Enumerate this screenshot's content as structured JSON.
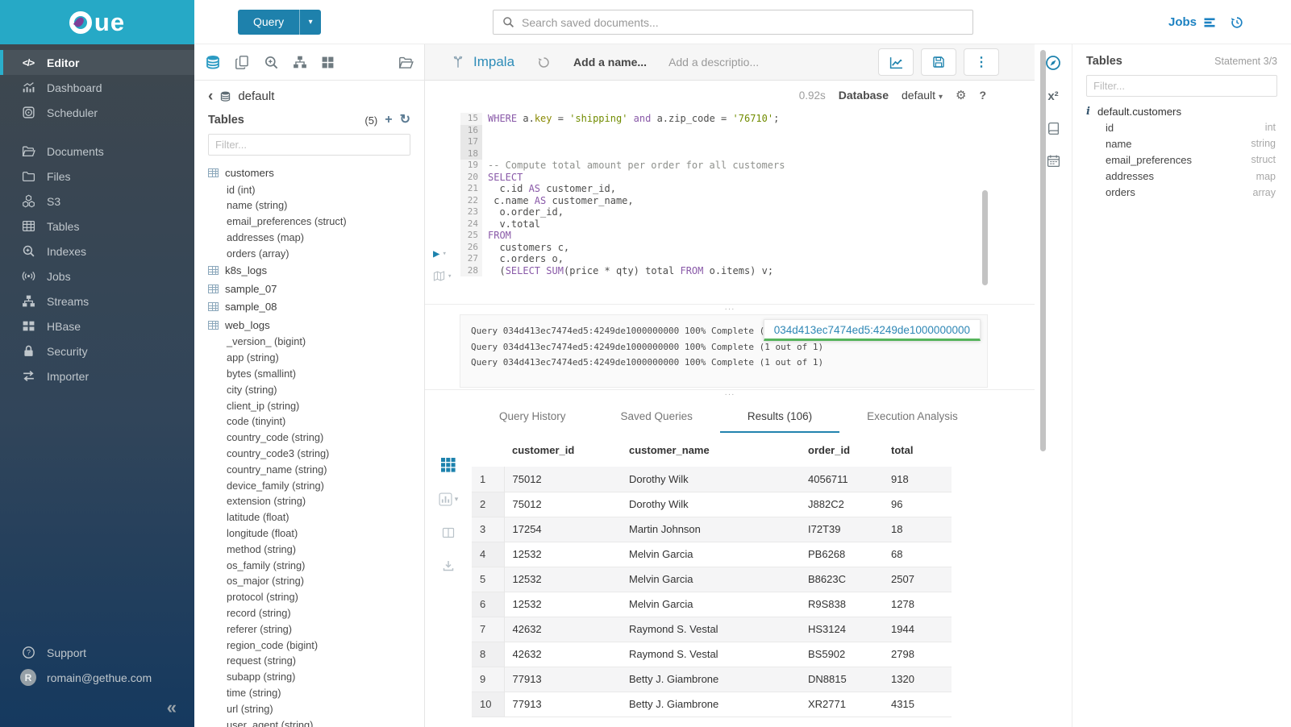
{
  "icons": {
    "editor_code": "</>",
    "caret_down": "▾",
    "play": "▶",
    "kebab": "⋮",
    "gear": "⚙",
    "help": "?",
    "back": "‹",
    "add": "+",
    "refresh": "↻",
    "collapse": "«",
    "superscript": "x²",
    "info": "i",
    "handle": "···",
    "avatar_initial": "R"
  },
  "colors": {
    "brand_cyan": "#26a9c6",
    "primary_blue": "#1d82ad",
    "keyword": "#8959a8",
    "string": "#718c00",
    "comment": "#8e908c",
    "tooltip_underline": "#56b45c"
  },
  "brand": {
    "logo_suffix": "ue"
  },
  "topbar": {
    "query_button": "Query",
    "search_placeholder": "Search saved documents...",
    "jobs_label": "Jobs"
  },
  "sidebar": {
    "items": [
      {
        "label": "Editor",
        "active": true
      },
      {
        "label": "Dashboard"
      },
      {
        "label": "Scheduler"
      },
      {
        "label": "Documents"
      },
      {
        "label": "Files"
      },
      {
        "label": "S3"
      },
      {
        "label": "Tables"
      },
      {
        "label": "Indexes"
      },
      {
        "label": "Jobs"
      },
      {
        "label": "Streams"
      },
      {
        "label": "HBase"
      },
      {
        "label": "Security"
      },
      {
        "label": "Importer"
      }
    ],
    "support_label": "Support",
    "user_email": "romain@gethue.com"
  },
  "left_panel": {
    "database": "default",
    "tables_label": "Tables",
    "tables_count": "(5)",
    "filter_placeholder": "Filter...",
    "tree": [
      {
        "table": "customers",
        "columns": [
          "id (int)",
          "name (string)",
          "email_preferences (struct)",
          "addresses (map)",
          "orders (array)"
        ]
      },
      {
        "table": "k8s_logs",
        "columns": []
      },
      {
        "table": "sample_07",
        "columns": []
      },
      {
        "table": "sample_08",
        "columns": []
      },
      {
        "table": "web_logs",
        "columns": [
          "_version_ (bigint)",
          "app (string)",
          "bytes (smallint)",
          "city (string)",
          "client_ip (string)",
          "code (tinyint)",
          "country_code (string)",
          "country_code3 (string)",
          "country_name (string)",
          "device_family (string)",
          "extension (string)",
          "latitude (float)",
          "longitude (float)",
          "method (string)",
          "os_family (string)",
          "os_major (string)",
          "protocol (string)",
          "record (string)",
          "referer (string)",
          "region_code (bigint)",
          "request (string)",
          "subapp (string)",
          "time (string)",
          "url (string)",
          "user_agent (string)"
        ]
      }
    ]
  },
  "editor": {
    "engine": "Impala",
    "name_placeholder": "Add a name...",
    "description_placeholder": "Add a descriptio...",
    "exec_time": "0.92s",
    "database_label": "Database",
    "database_value": "default",
    "lines": [
      {
        "n": 15,
        "seg": [
          [
            "kw",
            "WHERE"
          ],
          [
            "txt",
            " a."
          ],
          [
            "fn",
            "key"
          ],
          [
            "txt",
            " = "
          ],
          [
            "str",
            "'shipping'"
          ],
          [
            "txt",
            " "
          ],
          [
            "kw",
            "and"
          ],
          [
            "txt",
            " a.zip_code = "
          ],
          [
            "str",
            "'76710'"
          ],
          [
            "txt",
            ";"
          ]
        ]
      },
      {
        "n": 16,
        "seg": [],
        "dim": true
      },
      {
        "n": 17,
        "seg": [],
        "dim": true
      },
      {
        "n": 18,
        "seg": [],
        "dim": true
      },
      {
        "n": 19,
        "seg": [
          [
            "cmt",
            "-- Compute total amount per order for all customers"
          ]
        ]
      },
      {
        "n": 20,
        "seg": [
          [
            "kw",
            "SELECT"
          ]
        ]
      },
      {
        "n": 21,
        "seg": [
          [
            "txt",
            "  c.id "
          ],
          [
            "kw",
            "AS"
          ],
          [
            "txt",
            " customer_id,"
          ]
        ]
      },
      {
        "n": 22,
        "seg": [
          [
            "txt",
            " c.name "
          ],
          [
            "kw",
            "AS"
          ],
          [
            "txt",
            " customer_name,"
          ]
        ]
      },
      {
        "n": 23,
        "seg": [
          [
            "txt",
            "  o.order_id,"
          ]
        ]
      },
      {
        "n": 24,
        "seg": [
          [
            "txt",
            "  v.total"
          ]
        ]
      },
      {
        "n": 25,
        "seg": [
          [
            "kw",
            "FROM"
          ]
        ]
      },
      {
        "n": 26,
        "seg": [
          [
            "txt",
            "  customers c,"
          ]
        ]
      },
      {
        "n": 27,
        "seg": [
          [
            "txt",
            "  c.orders o,"
          ]
        ]
      },
      {
        "n": 28,
        "seg": [
          [
            "txt",
            "  ("
          ],
          [
            "kw",
            "SELECT"
          ],
          [
            "txt",
            " "
          ],
          [
            "kw",
            "SUM"
          ],
          [
            "txt",
            "(price * qty) total "
          ],
          [
            "kw",
            "FROM"
          ],
          [
            "txt",
            " o.items) v;"
          ]
        ]
      }
    ]
  },
  "logs": {
    "lines": [
      "Query 034d413ec7474ed5:4249de1000000000 100% Complete (1 out of 1)",
      "Query 034d413ec7474ed5:4249de1000000000 100% Complete (1 out of 1)",
      "Query 034d413ec7474ed5:4249de1000000000 100% Complete (1 out of 1)"
    ],
    "tooltip": "034d413ec7474ed5:4249de1000000000"
  },
  "tabs": [
    {
      "label": "Query History"
    },
    {
      "label": "Saved Queries"
    },
    {
      "label": "Results (106)",
      "active": true
    },
    {
      "label": "Execution Analysis"
    }
  ],
  "results": {
    "columns": [
      "customer_id",
      "customer_name",
      "order_id",
      "total"
    ],
    "rows": [
      [
        "1",
        "75012",
        "Dorothy Wilk",
        "4056711",
        "918"
      ],
      [
        "2",
        "75012",
        "Dorothy Wilk",
        "J882C2",
        "96"
      ],
      [
        "3",
        "17254",
        "Martin Johnson",
        "I72T39",
        "18"
      ],
      [
        "4",
        "12532",
        "Melvin Garcia",
        "PB6268",
        "68"
      ],
      [
        "5",
        "12532",
        "Melvin Garcia",
        "B8623C",
        "2507"
      ],
      [
        "6",
        "12532",
        "Melvin Garcia",
        "R9S838",
        "1278"
      ],
      [
        "7",
        "42632",
        "Raymond S. Vestal",
        "HS3124",
        "1944"
      ],
      [
        "8",
        "42632",
        "Raymond S. Vestal",
        "BS5902",
        "2798"
      ],
      [
        "9",
        "77913",
        "Betty J. Giambrone",
        "DN8815",
        "1320"
      ],
      [
        "10",
        "77913",
        "Betty J. Giambrone",
        "XR2771",
        "4315"
      ]
    ]
  },
  "right_panel": {
    "title": "Tables",
    "statement": "Statement 3/3",
    "filter_placeholder": "Filter...",
    "table_name": "default.customers",
    "columns": [
      {
        "name": "id",
        "type": "int"
      },
      {
        "name": "name",
        "type": "string"
      },
      {
        "name": "email_preferences",
        "type": "struct"
      },
      {
        "name": "addresses",
        "type": "map"
      },
      {
        "name": "orders",
        "type": "array"
      }
    ]
  }
}
